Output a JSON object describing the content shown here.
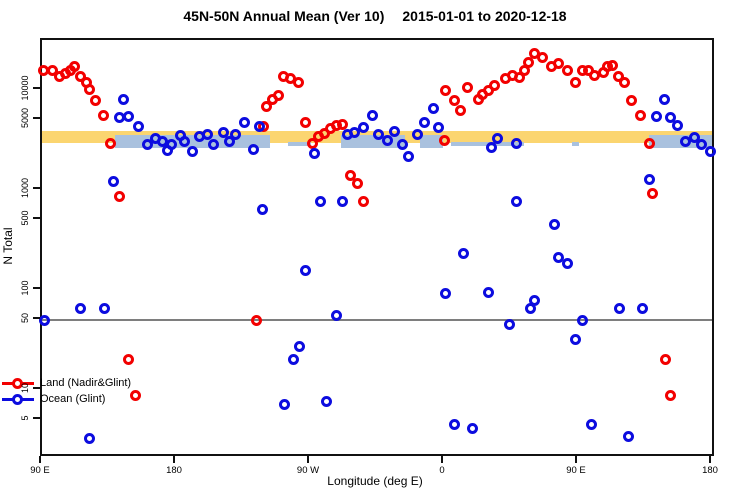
{
  "title": {
    "left": "45N-50N Annual Mean (Ver 10)",
    "right": "2015-01-01 to 2020-12-18"
  },
  "chart_data": {
    "type": "scatter",
    "x_axis": {
      "label": "Longitude (deg E)",
      "range": [
        90,
        540
      ],
      "ticks": [
        {
          "value": 90,
          "label": "90 E"
        },
        {
          "value": 180,
          "label": "180"
        },
        {
          "value": 270,
          "label": "90 W"
        },
        {
          "value": 360,
          "label": "0"
        },
        {
          "value": 450,
          "label": "90 E"
        },
        {
          "value": 540,
          "label": "180"
        }
      ]
    },
    "y_axis": {
      "label": "N Total",
      "scale": "log10",
      "range": [
        2.3,
        31600
      ],
      "ticks": [
        {
          "value": 10000,
          "label": "10000"
        },
        {
          "value": 5000,
          "label": "5000"
        },
        {
          "value": 1000,
          "label": "1000"
        },
        {
          "value": 500,
          "label": "500"
        },
        {
          "value": 100,
          "label": "100"
        },
        {
          "value": 50,
          "label": "50"
        },
        {
          "value": 10,
          "label": "10"
        },
        {
          "value": 5,
          "label": "5"
        }
      ]
    },
    "reference_line": {
      "value": 50,
      "color": "#7e7e7e"
    },
    "bands": {
      "orange": {
        "color": "#fbd570",
        "lon_range": [
          90,
          540
        ],
        "value_range": [
          2950,
          3890
        ]
      },
      "ocean_color": "#a9c1de",
      "ocean_segments": [
        {
          "lon_range": [
            139,
            243
          ],
          "value_range": [
            2630,
            3550
          ]
        },
        {
          "lon_range": [
            291,
            334
          ],
          "value_range": [
            2630,
            3550
          ]
        },
        {
          "lon_range": [
            344,
            359
          ],
          "value_range": [
            2630,
            3550
          ]
        },
        {
          "lon_range": [
            498,
            540
          ],
          "value_range": [
            2630,
            3550
          ]
        }
      ],
      "ocean_slivers": [
        {
          "lon_range": [
            255,
            271
          ],
          "value_range": [
            2760,
            3020
          ]
        },
        {
          "lon_range": [
            365,
            414
          ],
          "value_range": [
            2760,
            3020
          ]
        },
        {
          "lon_range": [
            446,
            451
          ],
          "value_range": [
            2760,
            3020
          ]
        }
      ]
    },
    "series": [
      {
        "name": "Land (Nadir&Glint)",
        "color": "#f20000",
        "points": [
          [
            91,
            15500
          ],
          [
            97,
            15500
          ],
          [
            102,
            13500
          ],
          [
            106,
            14500
          ],
          [
            109,
            15800
          ],
          [
            112,
            17000
          ],
          [
            116,
            13500
          ],
          [
            120,
            12000
          ],
          [
            122,
            10200
          ],
          [
            126,
            7900
          ],
          [
            131,
            5600
          ],
          [
            136,
            2900
          ],
          [
            142,
            870
          ],
          [
            148,
            20
          ],
          [
            153,
            8.9
          ],
          [
            234,
            50
          ],
          [
            239,
            4300
          ],
          [
            241,
            6900
          ],
          [
            245,
            8100
          ],
          [
            249,
            8900
          ],
          [
            252,
            13500
          ],
          [
            257,
            12900
          ],
          [
            262,
            12000
          ],
          [
            267,
            4700
          ],
          [
            272,
            2950
          ],
          [
            276,
            3400
          ],
          [
            280,
            3650
          ],
          [
            284,
            4150
          ],
          [
            288,
            4450
          ],
          [
            292,
            4550
          ],
          [
            297,
            1400
          ],
          [
            302,
            1150
          ],
          [
            306,
            760
          ],
          [
            360,
            3150
          ],
          [
            361,
            9800
          ],
          [
            367,
            7900
          ],
          [
            371,
            6300
          ],
          [
            376,
            10500
          ],
          [
            383,
            8100
          ],
          [
            386,
            9100
          ],
          [
            390,
            9800
          ],
          [
            394,
            11000
          ],
          [
            401,
            12900
          ],
          [
            406,
            14100
          ],
          [
            411,
            13200
          ],
          [
            414,
            15800
          ],
          [
            417,
            19000
          ],
          [
            421,
            23000
          ],
          [
            426,
            20900
          ],
          [
            432,
            17000
          ],
          [
            437,
            18600
          ],
          [
            443,
            15800
          ],
          [
            448,
            12000
          ],
          [
            453,
            15500
          ],
          [
            457,
            15800
          ],
          [
            461,
            14100
          ],
          [
            467,
            14800
          ],
          [
            470,
            17000
          ],
          [
            473,
            17400
          ],
          [
            477,
            13500
          ],
          [
            481,
            11800
          ],
          [
            486,
            7900
          ],
          [
            492,
            5600
          ],
          [
            498,
            2900
          ],
          [
            500,
            930
          ],
          [
            509,
            20
          ],
          [
            512,
            8.9
          ]
        ]
      },
      {
        "name": "Ocean (Glint)",
        "color": "#0c0cdf",
        "points": [
          [
            92,
            50
          ],
          [
            116,
            65
          ],
          [
            132,
            66
          ],
          [
            122,
            3.3
          ],
          [
            138,
            1230
          ],
          [
            145,
            8100
          ],
          [
            142,
            5250
          ],
          [
            148,
            5400
          ],
          [
            155,
            4270
          ],
          [
            161,
            2880
          ],
          [
            166,
            3300
          ],
          [
            171,
            3090
          ],
          [
            174,
            2510
          ],
          [
            177,
            2820
          ],
          [
            183,
            3470
          ],
          [
            186,
            3020
          ],
          [
            191,
            2450
          ],
          [
            196,
            3390
          ],
          [
            201,
            3550
          ],
          [
            205,
            2820
          ],
          [
            212,
            3800
          ],
          [
            216,
            3090
          ],
          [
            220,
            3630
          ],
          [
            226,
            4680
          ],
          [
            232,
            2570
          ],
          [
            236,
            4270
          ],
          [
            238,
            645
          ],
          [
            253,
            7.1
          ],
          [
            259,
            20
          ],
          [
            263,
            27
          ],
          [
            267,
            158
          ],
          [
            273,
            2340
          ],
          [
            277,
            776
          ],
          [
            281,
            7.6
          ],
          [
            288,
            55
          ],
          [
            292,
            760
          ],
          [
            295,
            3550
          ],
          [
            300,
            3720
          ],
          [
            306,
            4170
          ],
          [
            312,
            5620
          ],
          [
            316,
            3550
          ],
          [
            322,
            3160
          ],
          [
            327,
            3890
          ],
          [
            332,
            2820
          ],
          [
            336,
            2140
          ],
          [
            342,
            3550
          ],
          [
            347,
            4680
          ],
          [
            353,
            6460
          ],
          [
            356,
            4170
          ],
          [
            361,
            93
          ],
          [
            367,
            4.5
          ],
          [
            373,
            234
          ],
          [
            379,
            4.1
          ],
          [
            390,
            95
          ],
          [
            392,
            2690
          ],
          [
            396,
            3240
          ],
          [
            404,
            45
          ],
          [
            409,
            2950
          ],
          [
            409,
            776
          ],
          [
            418,
            66
          ],
          [
            421,
            78
          ],
          [
            434,
            457
          ],
          [
            437,
            209
          ],
          [
            443,
            182
          ],
          [
            448,
            32
          ],
          [
            453,
            50
          ],
          [
            459,
            4.5
          ],
          [
            478,
            65
          ],
          [
            484,
            3.4
          ],
          [
            493,
            66
          ],
          [
            498,
            1260
          ],
          [
            503,
            5400
          ],
          [
            508,
            8100
          ],
          [
            512,
            5250
          ],
          [
            517,
            4370
          ],
          [
            522,
            3020
          ],
          [
            528,
            3350
          ],
          [
            533,
            2820
          ],
          [
            539,
            2400
          ]
        ]
      }
    ],
    "legend": {
      "position": "bottom-left",
      "items": [
        "Land (Nadir&Glint)",
        "Ocean (Glint)"
      ]
    },
    "grid": false
  }
}
